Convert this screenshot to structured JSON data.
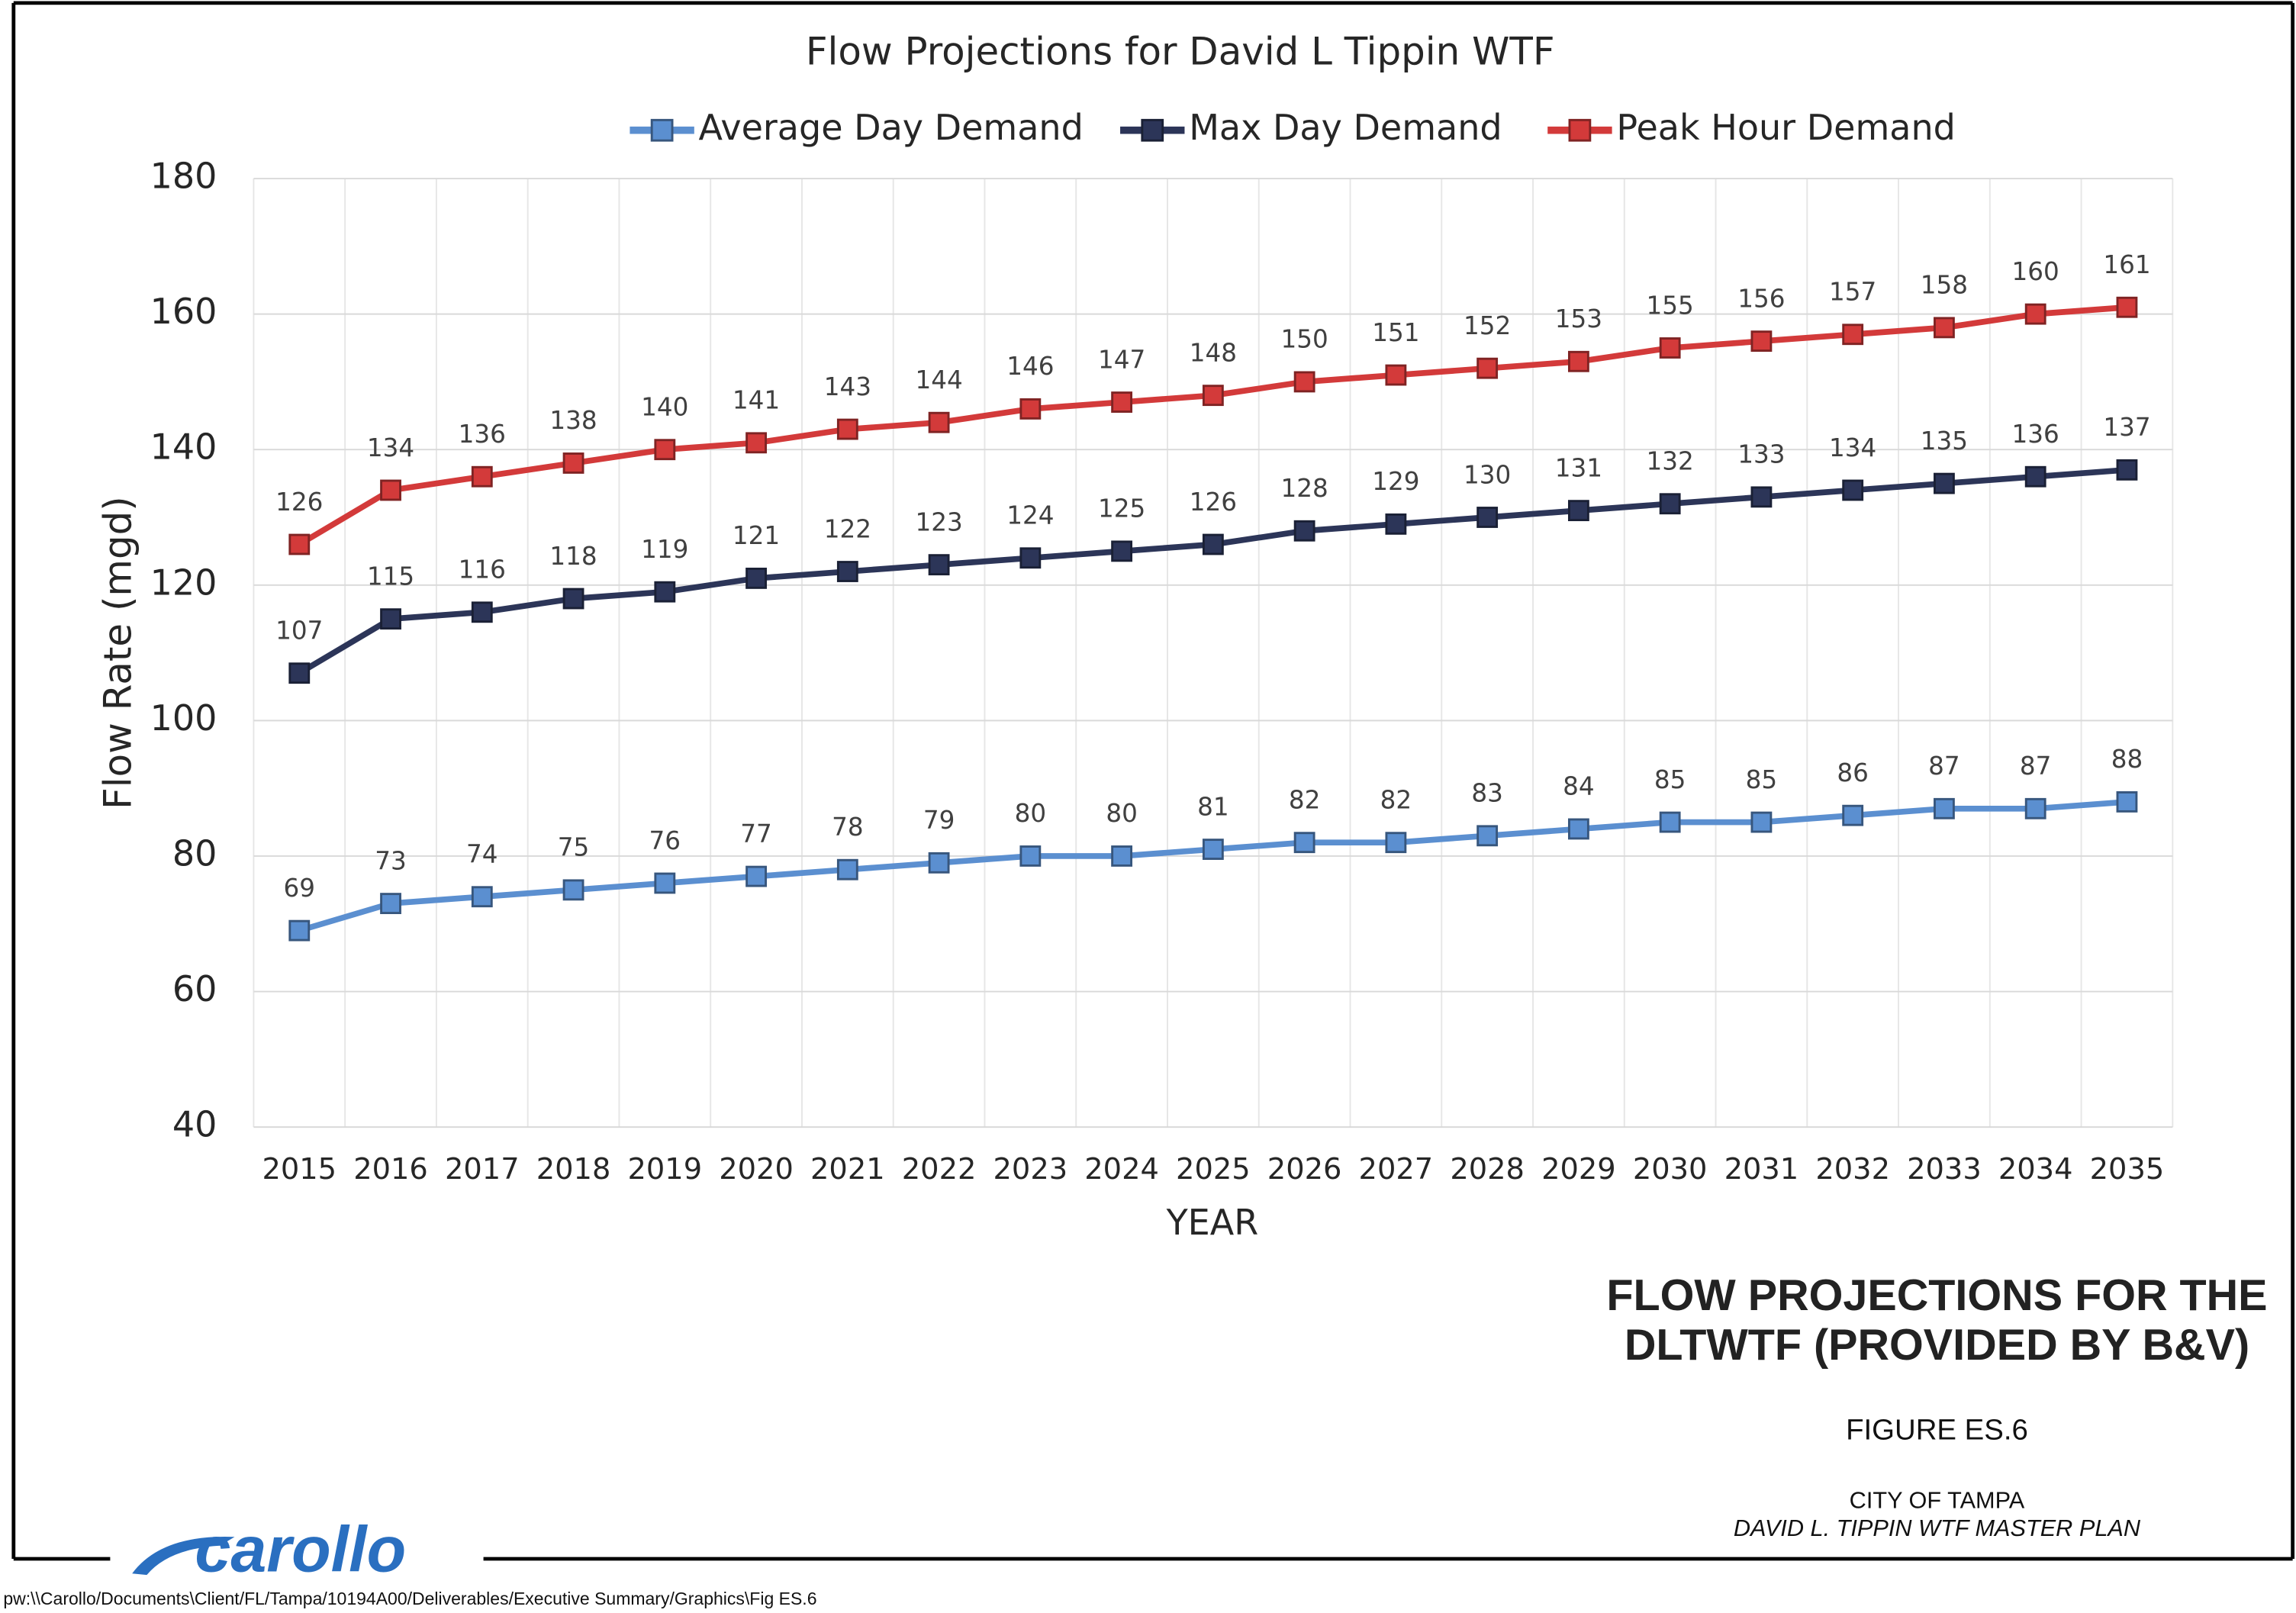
{
  "chart_data": {
    "type": "line",
    "title": "Flow Projections for David L Tippin WTF",
    "x_label": "YEAR",
    "y_label": "Flow Rate (mgd)",
    "categories": [
      "2015",
      "2016",
      "2017",
      "2018",
      "2019",
      "2020",
      "2021",
      "2022",
      "2023",
      "2024",
      "2025",
      "2026",
      "2027",
      "2028",
      "2029",
      "2030",
      "2031",
      "2032",
      "2033",
      "2034",
      "2035"
    ],
    "series": [
      {
        "name": "Average Day Demand",
        "color": "#5b8fd0",
        "values": [
          69,
          73,
          74,
          75,
          76,
          77,
          78,
          79,
          80,
          80,
          81,
          82,
          82,
          83,
          84,
          85,
          85,
          86,
          87,
          87,
          88
        ]
      },
      {
        "name": "Max Day Demand",
        "color": "#2c3558",
        "values": [
          107,
          115,
          116,
          118,
          119,
          121,
          122,
          123,
          124,
          125,
          126,
          128,
          129,
          130,
          131,
          132,
          133,
          134,
          135,
          136,
          137
        ]
      },
      {
        "name": "Peak Hour Demand",
        "color": "#d33a3a",
        "values": [
          126,
          134,
          136,
          138,
          140,
          141,
          143,
          144,
          146,
          147,
          148,
          150,
          151,
          152,
          153,
          155,
          156,
          157,
          158,
          160,
          161
        ]
      }
    ],
    "ylim": [
      40,
      180
    ],
    "yticks": [
      40,
      60,
      80,
      100,
      120,
      140,
      160,
      180
    ],
    "grid": true,
    "legend": "top",
    "data_labels": true
  },
  "figure": {
    "title_line1": "FLOW PROJECTIONS FOR THE",
    "title_line2": "DLTWTF (PROVIDED BY B&V)",
    "figure_number": "FIGURE ES.6",
    "client": "CITY OF TAMPA",
    "project": "DAVID L. TIPPIN WTF MASTER PLAN",
    "logo": "carollo",
    "file_path": "pw:\\\\Carollo/Documents\\Client/FL/Tampa/10194A00/Deliverables/Executive Summary/Graphics\\Fig ES.6"
  }
}
